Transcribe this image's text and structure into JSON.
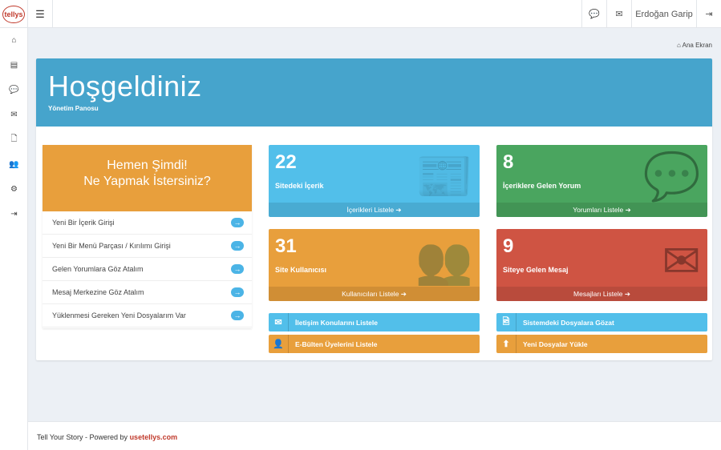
{
  "app": {
    "logo_text": "tellys"
  },
  "topbar": {
    "user_name": "Erdoğan Garip"
  },
  "breadcrumb": {
    "label": "Ana Ekran"
  },
  "hero": {
    "title": "Hoşgeldiniz",
    "subtitle": "Yönetim Panosu"
  },
  "quick": {
    "title_line1": "Hemen Şimdi!",
    "title_line2": "Ne Yapmak İstersiniz?",
    "items": [
      "Yeni Bir İçerik Girişi",
      "Yeni Bir Menü Parçası / Kırılımı Girişi",
      "Gelen Yorumlara Göz Atalım",
      "Mesaj Merkezine Göz Atalım",
      "Yüklenmesi Gereken Yeni Dosyalarım Var"
    ]
  },
  "tiles": [
    {
      "count": "22",
      "label": "Sitedeki İçerik",
      "link": "İçerikleri Listele ➔",
      "color": "#52bfea",
      "icon": "newspaper-icon"
    },
    {
      "count": "8",
      "label": "İçeriklere Gelen Yorum",
      "link": "Yorumları Listele ➔",
      "color": "#4aa55f",
      "icon": "comments-icon"
    },
    {
      "count": "31",
      "label": "Site Kullanıcısı",
      "link": "Kullanıcıları Listele ➔",
      "color": "#e89f3c",
      "icon": "users-icon"
    },
    {
      "count": "9",
      "label": "Siteye Gelen Mesaj",
      "link": "Mesajları Listele ➔",
      "color": "#cf5443",
      "icon": "envelope-icon"
    }
  ],
  "buttons": [
    {
      "label": "İletişim Konularını Listele",
      "color": "#52bfea",
      "icon": "envelope-icon"
    },
    {
      "label": "Sistemdeki Dosyalara Gözat",
      "color": "#52bfea",
      "icon": "file-image-icon"
    },
    {
      "label": "E-Bülten Üyelerini Listele",
      "color": "#e89f3c",
      "icon": "user-icon"
    },
    {
      "label": "Yeni Dosyalar Yükle",
      "color": "#e89f3c",
      "icon": "upload-icon"
    }
  ],
  "footer": {
    "text": "Tell Your Story - Powered by ",
    "link": "usetellys.com"
  }
}
